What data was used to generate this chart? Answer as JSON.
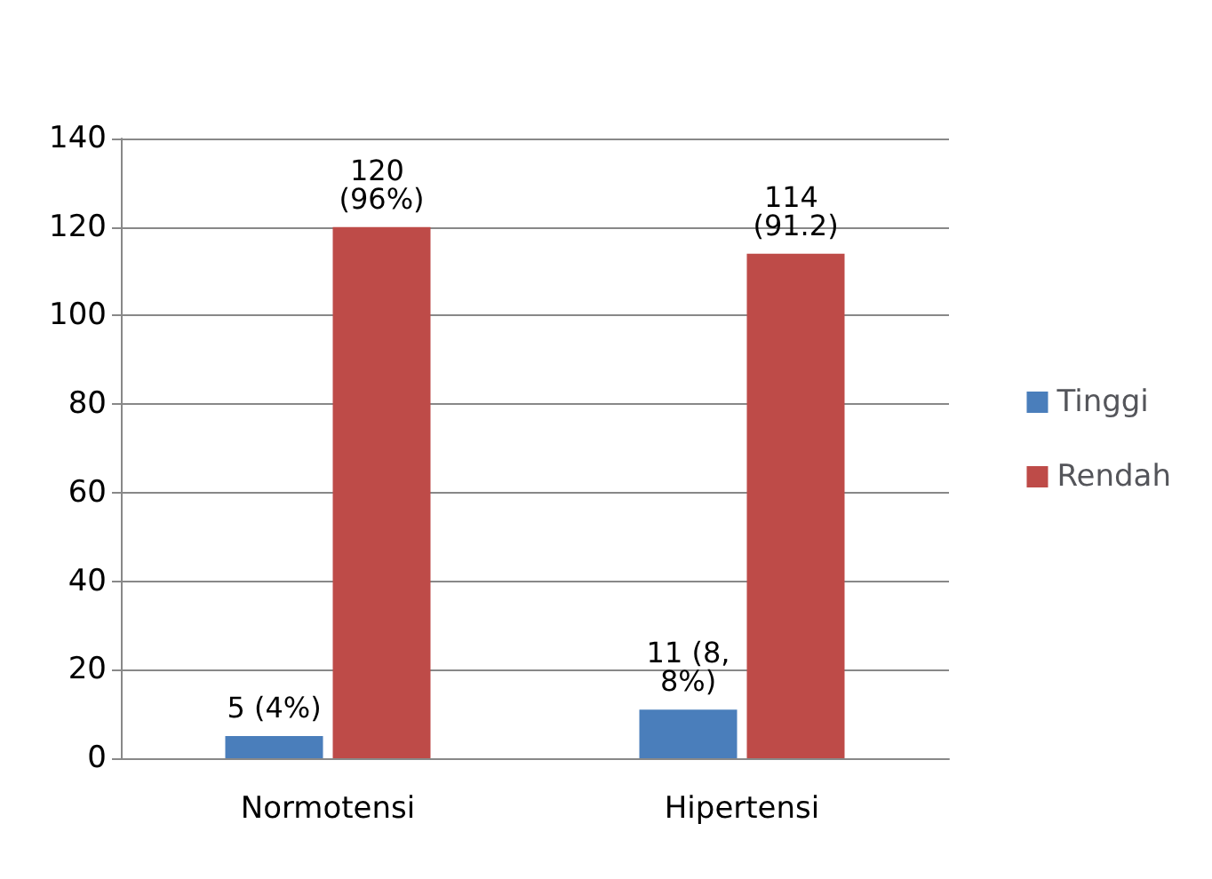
{
  "chart_data": {
    "type": "bar",
    "categories": [
      "Normotensi",
      "Hipertensi"
    ],
    "series": [
      {
        "name": "Tinggi",
        "color": "#4a7ebb",
        "values": [
          5,
          11
        ],
        "value_labels": [
          "5 (4%)",
          "11 (8,8%)"
        ]
      },
      {
        "name": "Rendah",
        "color": "#be4b48",
        "values": [
          120,
          114
        ],
        "value_labels": [
          "120 (96%)",
          "114 (91.2)"
        ]
      }
    ],
    "ylim": [
      0,
      140
    ],
    "yticks": [
      0,
      20,
      40,
      60,
      80,
      100,
      120,
      140
    ],
    "grid": "y",
    "legend": "right"
  }
}
